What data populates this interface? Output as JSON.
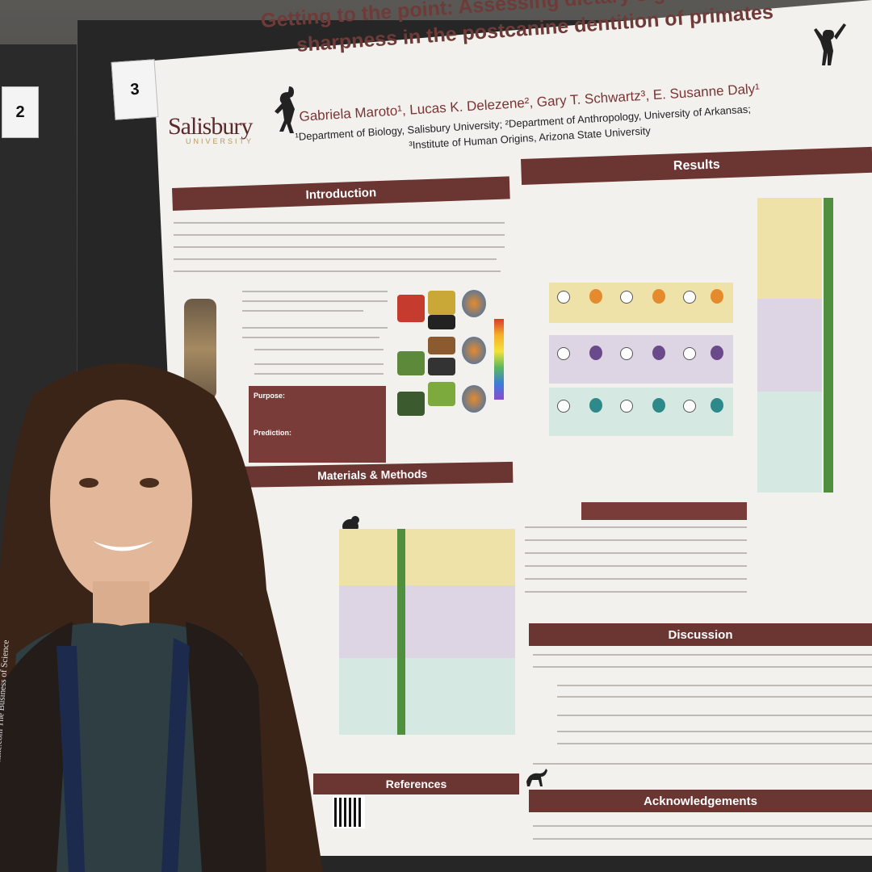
{
  "booth_numbers": [
    "2",
    "3"
  ],
  "poster": {
    "title_line1": "Getting to the point: Assessing dietary signal from tooth",
    "title_line2": "sharpness in the postcanine dentition of primates",
    "authors": "Gabriela Maroto¹, Lucas K. Delezene², Gary T. Schwartz³, E. Susanne Daly¹",
    "affiliations": [
      "¹Department of Biology, Salisbury University; ²Department of Anthropology, University of Arkansas;",
      "³Institute of Human Origins, Arizona State University"
    ],
    "logo_text": "Salisbury",
    "logo_subtext": "UNIVERSITY",
    "sections": {
      "introduction": "Introduction",
      "results": "Results",
      "methods": "Materials & Methods",
      "discussion": "Discussion",
      "references": "References",
      "acknowledgements": "Acknowledgements"
    },
    "purpose_label": "Purpose:",
    "prediction_label": "Prediction:",
    "lanyard_text": "BurkInc.com  The Business of Science"
  },
  "colors": {
    "section_header": "#6b3532",
    "poster_bg": "#f3f1ed",
    "diet_green": "#4f8f3e",
    "band_yellow": "#efe2a8",
    "band_purple": "#ddd4e4",
    "band_teal": "#d6e8e2"
  }
}
